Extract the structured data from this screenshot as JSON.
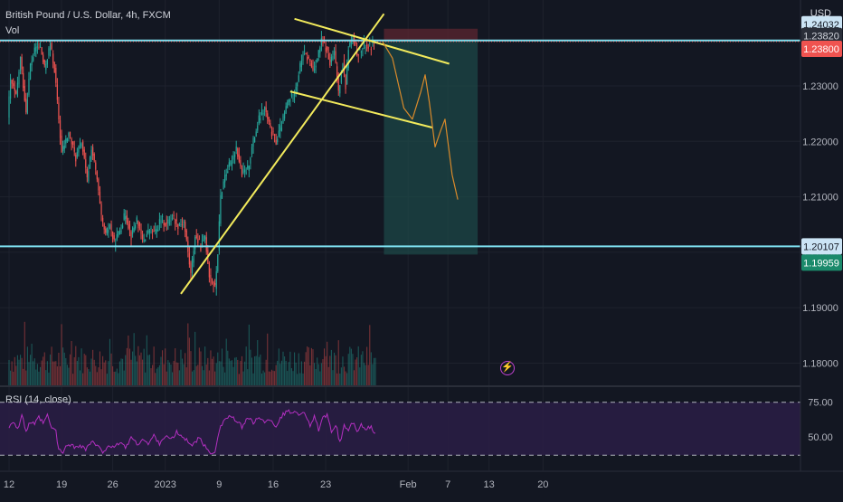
{
  "header": {
    "symbol_title": "British Pound / U.S. Dollar, 4h, FXCM",
    "volume_label": "Vol",
    "currency": "USD"
  },
  "rsi_panel": {
    "label": "RSI (14, close)",
    "upper_band": 75,
    "lower_band": 50
  },
  "icons": {
    "event_marker": "lightning-bolt-icon"
  },
  "colors": {
    "background": "#131722",
    "grid": "#1e222d",
    "up_candle": "#26a69a",
    "down_candle": "#ef5350",
    "horizontal_level": "#7ee0f0",
    "trendline": "#f2ea5c",
    "projection": "#d98a2b",
    "rsi_line": "#b32fc0",
    "rsi_band_fill": "#2a1d45",
    "profit_zone": "#1d4a48",
    "loss_zone": "#5c2630"
  },
  "chart_data": [
    {
      "type": "candlestick",
      "symbol": "British Pound / U.S. Dollar",
      "interval": "4h",
      "source": "FXCM",
      "y_axis_side": "right",
      "ylim": [
        1.176,
        1.2455
      ],
      "y_ticks": [
        "1.18000",
        "1.19000",
        "1.20000",
        "1.21000",
        "1.22000",
        "1.23000"
      ],
      "x_ticks": [
        "12",
        "19",
        "26",
        "2023",
        "9",
        "16",
        "23",
        "Feb",
        "7",
        "13",
        "20"
      ],
      "x_tick_index": [
        0,
        37,
        73,
        110,
        148,
        186,
        223,
        281,
        309,
        338,
        376
      ],
      "price_labels": [
        {
          "value": "1.24032",
          "style": "selected-blue"
        },
        {
          "value": "1.23820",
          "style": "level-dark"
        },
        {
          "value": "1.23800",
          "style": "last-price-red"
        },
        {
          "value": "1.20107",
          "style": "level-blue"
        },
        {
          "value": "1.19959",
          "style": "target-green"
        }
      ],
      "horizontal_levels": [
        1.2382,
        1.20107
      ],
      "last_price": 1.238,
      "waypoints": [
        [
          0,
          1.224
        ],
        [
          2,
          1.231
        ],
        [
          6,
          1.228
        ],
        [
          9,
          1.235
        ],
        [
          13,
          1.2255
        ],
        [
          16,
          1.2338
        ],
        [
          20,
          1.237
        ],
        [
          23,
          1.237
        ],
        [
          26,
          1.233
        ],
        [
          30,
          1.2375
        ],
        [
          33,
          1.233
        ],
        [
          36,
          1.224
        ],
        [
          38,
          1.218
        ],
        [
          43,
          1.2215
        ],
        [
          48,
          1.217
        ],
        [
          52,
          1.22
        ],
        [
          56,
          1.213
        ],
        [
          59,
          1.219
        ],
        [
          63,
          1.213
        ],
        [
          66,
          1.206
        ],
        [
          69,
          1.203
        ],
        [
          72,
          1.205
        ],
        [
          75,
          1.2015
        ],
        [
          79,
          1.204
        ],
        [
          83,
          1.207
        ],
        [
          87,
          1.203
        ],
        [
          91,
          1.206
        ],
        [
          95,
          1.202
        ],
        [
          100,
          1.204
        ],
        [
          104,
          1.2035
        ],
        [
          108,
          1.206
        ],
        [
          112,
          1.205
        ],
        [
          116,
          1.2065
        ],
        [
          120,
          1.205
        ],
        [
          124,
          1.2055
        ],
        [
          126,
          1.202
        ],
        [
          129,
          1.196
        ],
        [
          132,
          1.203
        ],
        [
          136,
          1.201
        ],
        [
          139,
          1.203
        ],
        [
          142,
          1.196
        ],
        [
          146,
          1.1935
        ],
        [
          148,
          1.2
        ],
        [
          150,
          1.21
        ],
        [
          153,
          1.214
        ],
        [
          157,
          1.216
        ],
        [
          161,
          1.219
        ],
        [
          165,
          1.214
        ],
        [
          169,
          1.215
        ],
        [
          173,
          1.22
        ],
        [
          177,
          1.224
        ],
        [
          181,
          1.226
        ],
        [
          185,
          1.222
        ],
        [
          189,
          1.22
        ],
        [
          193,
          1.223
        ],
        [
          197,
          1.227
        ],
        [
          201,
          1.2285
        ],
        [
          204,
          1.231
        ],
        [
          206,
          1.2335
        ],
        [
          208,
          1.236
        ],
        [
          212,
          1.2348
        ],
        [
          215,
          1.233
        ],
        [
          218,
          1.235
        ],
        [
          221,
          1.238
        ],
        [
          224,
          1.2368
        ],
        [
          227,
          1.234
        ],
        [
          230,
          1.236
        ],
        [
          233,
          1.229
        ],
        [
          236,
          1.2345
        ],
        [
          238,
          1.23
        ],
        [
          240,
          1.237
        ],
        [
          243,
          1.2385
        ],
        [
          246,
          1.236
        ],
        [
          249,
          1.2365
        ],
        [
          252,
          1.2375
        ],
        [
          255,
          1.237
        ],
        [
          258,
          1.238
        ]
      ],
      "volume_scale": [
        0,
        1
      ],
      "trendlines": [
        {
          "points": [
            [
              121,
              1.1925
            ],
            [
              264,
              1.243
            ]
          ]
        },
        {
          "points": [
            [
              201,
              1.2421
            ],
            [
              310,
              1.234
            ]
          ]
        },
        {
          "points": [
            [
              198,
              1.229
            ],
            [
              298,
              1.2225
            ]
          ]
        }
      ],
      "projection_path": [
        [
          263,
          1.238
        ],
        [
          270,
          1.235
        ],
        [
          278,
          1.226
        ],
        [
          284,
          1.224
        ],
        [
          290,
          1.229
        ],
        [
          293,
          1.232
        ],
        [
          296,
          1.227
        ],
        [
          300,
          1.219
        ],
        [
          304,
          1.222
        ],
        [
          307,
          1.224
        ],
        [
          312,
          1.214
        ],
        [
          316,
          1.2095
        ]
      ],
      "position": {
        "entry": 1.2382,
        "stop": 1.24032,
        "target": 1.19959,
        "start_index": 264,
        "end_index": 330
      }
    },
    {
      "type": "line",
      "name": "RSI (14, close)",
      "ylim": [
        30,
        85
      ],
      "y_ticks": [
        "75.00",
        "50.00"
      ],
      "bands": [
        75,
        50
      ],
      "waypoints": [
        [
          0,
          59
        ],
        [
          3,
          63
        ],
        [
          6,
          57
        ],
        [
          9,
          66
        ],
        [
          12,
          56
        ],
        [
          15,
          62
        ],
        [
          18,
          60
        ],
        [
          21,
          65
        ],
        [
          24,
          61
        ],
        [
          27,
          66
        ],
        [
          30,
          58
        ],
        [
          33,
          56
        ],
        [
          35,
          43
        ],
        [
          38,
          42
        ],
        [
          42,
          48
        ],
        [
          46,
          45
        ],
        [
          50,
          47
        ],
        [
          54,
          44
        ],
        [
          58,
          49
        ],
        [
          62,
          46
        ],
        [
          66,
          42
        ],
        [
          70,
          47
        ],
        [
          74,
          44
        ],
        [
          78,
          49
        ],
        [
          82,
          45
        ],
        [
          86,
          52
        ],
        [
          90,
          47
        ],
        [
          94,
          51
        ],
        [
          98,
          47
        ],
        [
          102,
          53
        ],
        [
          106,
          48
        ],
        [
          110,
          53
        ],
        [
          114,
          50
        ],
        [
          118,
          55
        ],
        [
          122,
          52
        ],
        [
          126,
          49
        ],
        [
          130,
          47
        ],
        [
          133,
          51
        ],
        [
          136,
          49
        ],
        [
          139,
          44
        ],
        [
          142,
          41
        ],
        [
          145,
          43
        ],
        [
          148,
          57
        ],
        [
          152,
          64
        ],
        [
          156,
          66
        ],
        [
          160,
          62
        ],
        [
          164,
          59
        ],
        [
          168,
          65
        ],
        [
          172,
          61
        ],
        [
          176,
          66
        ],
        [
          180,
          61
        ],
        [
          184,
          64
        ],
        [
          188,
          59
        ],
        [
          192,
          66
        ],
        [
          196,
          69
        ],
        [
          200,
          68
        ],
        [
          202,
          70
        ],
        [
          205,
          66
        ],
        [
          208,
          69
        ],
        [
          212,
          60
        ],
        [
          215,
          65
        ],
        [
          218,
          57
        ],
        [
          221,
          64
        ],
        [
          224,
          66
        ],
        [
          227,
          55
        ],
        [
          230,
          61
        ],
        [
          233,
          48
        ],
        [
          236,
          60
        ],
        [
          239,
          56
        ],
        [
          242,
          62
        ],
        [
          245,
          55
        ],
        [
          248,
          60
        ],
        [
          251,
          56
        ],
        [
          254,
          59
        ],
        [
          258,
          55
        ]
      ]
    }
  ]
}
